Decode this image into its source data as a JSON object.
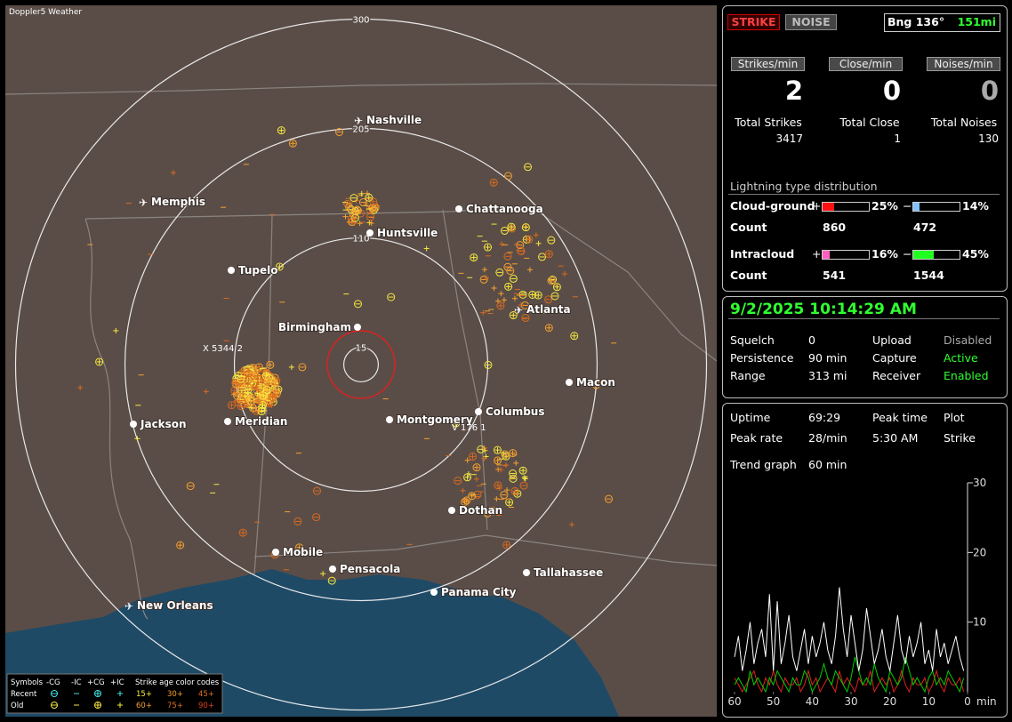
{
  "map": {
    "title": "Doppler5 Weather",
    "rings": [
      300,
      205,
      110,
      15
    ],
    "cities": [
      "Nashville",
      "Memphis",
      "Chattanooga",
      "Huntsville",
      "Tupelo",
      "Birmingham",
      "Atlanta",
      "Macon",
      "Jackson",
      "Meridian",
      "Montgomery",
      "Columbus",
      "Dothan",
      "Mobile",
      "Pensacola",
      "Tallahassee",
      "Panama City",
      "New Orleans"
    ],
    "track_labels": [
      "X 5344 2",
      "V 176 1"
    ],
    "legend": {
      "symbols": "Symbols",
      "types": [
        "-CG",
        "-IC",
        "+CG",
        "+IC"
      ],
      "age_title": "Strike age color codes",
      "rows": [
        {
          "name": "Recent",
          "ages": [
            "15+",
            "30+",
            "45+"
          ]
        },
        {
          "name": "Old",
          "ages": [
            "60+",
            "75+",
            "90+"
          ]
        }
      ]
    }
  },
  "panel": {
    "tabs": [
      "STRIKE",
      "NOISE"
    ],
    "bearing": "Bng 136°",
    "distance": "151mi",
    "rates": [
      {
        "label": "Strikes/min",
        "value": 2
      },
      {
        "label": "Close/min",
        "value": 0
      },
      {
        "label": "Noises/min",
        "value": 0
      }
    ],
    "totals": [
      {
        "label": "Total Strikes",
        "value": 3417
      },
      {
        "label": "Total Close",
        "value": 1
      },
      {
        "label": "Total Noises",
        "value": 130
      }
    ],
    "distribution": {
      "title": "Lightning type distribution",
      "count_label": "Count",
      "plus": "+",
      "minus": "−",
      "rows": [
        {
          "name": "Cloud-ground",
          "plus_pct": 25,
          "plus_pct_label": "25%",
          "plus_color": "#ff1010",
          "minus_pct": 14,
          "minus_pct_label": "14%",
          "minus_color": "#80c0ff",
          "plus_count": 860,
          "minus_count": 472
        },
        {
          "name": "Intracloud",
          "plus_pct": 16,
          "plus_pct_label": "16%",
          "plus_color": "#ff60c0",
          "minus_pct": 45,
          "minus_pct_label": "45%",
          "minus_color": "#20ff20",
          "plus_count": 541,
          "minus_count": 1544
        }
      ]
    },
    "status": {
      "datetime": "9/2/2025 10:14:29 AM",
      "rows": [
        [
          "Squelch",
          "0",
          "Upload",
          "Disabled"
        ],
        [
          "Persistence",
          "90 min",
          "Capture",
          "Active"
        ],
        [
          "Range",
          "313 mi",
          "Receiver",
          "Enabled"
        ]
      ]
    },
    "stats": {
      "rows": [
        [
          "Uptime",
          "69:29",
          "Peak time",
          "Plot"
        ],
        [
          "Peak rate",
          "28/min",
          "5:30 AM",
          "Strike"
        ]
      ],
      "trend_label": "Trend graph",
      "trend_value": "60 min"
    },
    "trend": {
      "xlim": [
        60,
        0
      ],
      "ylim": [
        0,
        30
      ],
      "xticks": [
        60,
        50,
        40,
        30,
        20,
        10,
        0
      ],
      "yticks": [
        10,
        20,
        30
      ],
      "xlabel": "min",
      "x": [
        60,
        59,
        58,
        57,
        56,
        55,
        54,
        53,
        52,
        51,
        50,
        49,
        48,
        47,
        46,
        45,
        44,
        43,
        42,
        41,
        40,
        39,
        38,
        37,
        36,
        35,
        34,
        33,
        32,
        31,
        30,
        29,
        28,
        27,
        26,
        25,
        24,
        23,
        22,
        21,
        20,
        19,
        18,
        17,
        16,
        15,
        14,
        13,
        12,
        11,
        10,
        9,
        8,
        7,
        6,
        5,
        4,
        3,
        2,
        1
      ],
      "series": [
        {
          "color": "#ffffff",
          "values": [
            5,
            8,
            3,
            6,
            10,
            4,
            7,
            9,
            5,
            14,
            3,
            13,
            4,
            7,
            11,
            5,
            3,
            6,
            9,
            4,
            8,
            5,
            7,
            10,
            6,
            4,
            8,
            15,
            9,
            5,
            11,
            7,
            3,
            6,
            12,
            8,
            4,
            6,
            9,
            5,
            3,
            7,
            11,
            6,
            4,
            8,
            5,
            7,
            10,
            4,
            6,
            3,
            9,
            5,
            7,
            4,
            6,
            8,
            5,
            3
          ]
        },
        {
          "color": "#00d000",
          "values": [
            1,
            2,
            1,
            0,
            3,
            1,
            2,
            1,
            0,
            2,
            1,
            3,
            2,
            1,
            0,
            2,
            1,
            1,
            3,
            2,
            0,
            1,
            2,
            4,
            2,
            1,
            3,
            2,
            1,
            0,
            2,
            5,
            3,
            1,
            2,
            1,
            4,
            2,
            1,
            0,
            3,
            2,
            1,
            2,
            5,
            3,
            1,
            2,
            1,
            0,
            2,
            3,
            1,
            2,
            1,
            3,
            2,
            1,
            0,
            2
          ]
        },
        {
          "color": "#e02020",
          "values": [
            2,
            1,
            0,
            1,
            2,
            3,
            1,
            0,
            2,
            1,
            3,
            1,
            0,
            2,
            1,
            1,
            2,
            0,
            1,
            3,
            1,
            2,
            0,
            1,
            2,
            1,
            0,
            3,
            1,
            2,
            1,
            0,
            2,
            1,
            1,
            3,
            0,
            1,
            2,
            1,
            2,
            0,
            1,
            3,
            1,
            0,
            2,
            1,
            1,
            2,
            0,
            1,
            3,
            1,
            0,
            2,
            1,
            1,
            2,
            0
          ]
        }
      ]
    }
  }
}
